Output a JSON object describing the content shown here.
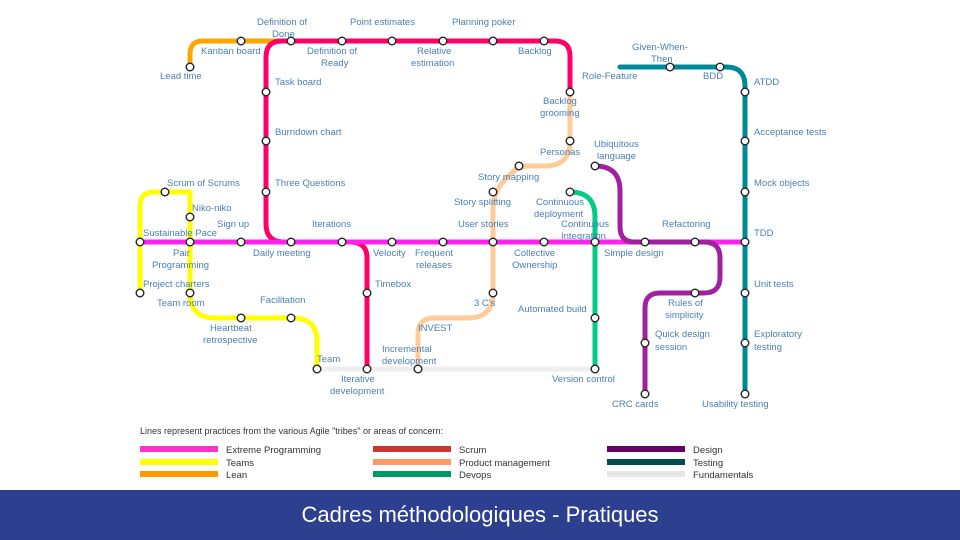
{
  "title": "Cadres méthodologiques - Pratiques",
  "legend": {
    "caption": "Lines represent practices from the various Agile \"tribes\" or areas of concern:",
    "items": [
      {
        "label": "Extreme Programming",
        "color": "#ff33cc"
      },
      {
        "label": "Teams",
        "color": "#ffff00"
      },
      {
        "label": "Lean",
        "color": "#ff9900"
      },
      {
        "label": "Scrum",
        "color": "#cc3333"
      },
      {
        "label": "Product management",
        "color": "#ff9966"
      },
      {
        "label": "Devops",
        "color": "#009966"
      },
      {
        "label": "Design",
        "color": "#660066"
      },
      {
        "label": "Testing",
        "color": "#004d4d"
      },
      {
        "label": "Fundamentals",
        "color": "#e6e6e6"
      }
    ]
  },
  "lines": {
    "xp": "#ff22ee",
    "teams": "#ffff00",
    "lean": "#ffa500",
    "scrum": "#ff0066",
    "product": "#ffcc99",
    "devops": "#00cc88",
    "design": "#a020a0",
    "testing": "#008899",
    "fundamentals": "#eeeeee"
  },
  "stations": {
    "lead_time": "Lead time",
    "kanban_board": "Kanban board",
    "definition_of_done_1": "Definition of",
    "definition_of_done_2": "Done",
    "point_estimates": "Point estimates",
    "planning_poker": "Planning poker",
    "definition_of_ready_1": "Definition of",
    "definition_of_ready_2": "Ready",
    "relative_estimation_1": "Relative",
    "relative_estimation_2": "estimation",
    "backlog": "Backlog",
    "task_board": "Task board",
    "burndown_chart": "Burndown chart",
    "three_questions": "Three Questions",
    "backlog_grooming_1": "Backlog",
    "backlog_grooming_2": "grooming",
    "personas": "Personas",
    "story_mapping": "Story mapping",
    "story_splitting": "Story splitting",
    "user_stories": "User stories",
    "continuous_deployment_1": "Continuous",
    "continuous_deployment_2": "deployment",
    "continuous_integration_1": "Continuous",
    "continuous_integration_2": "Integration",
    "given_when_then_1": "Given-When-",
    "given_when_then_2": "Then",
    "bdd": "BDD",
    "role_feature": "Role-Feature",
    "atdd": "ATDD",
    "acceptance_tests": "Acceptance tests",
    "mock_objects": "Mock objects",
    "ubiquitous_language_1": "Ubiquitous",
    "ubiquitous_language_2": "language",
    "refactoring": "Refactoring",
    "tdd": "TDD",
    "scrum_of_scrums": "Scrum of Scrums",
    "niko_niko": "Niko-niko",
    "sign_up": "Sign up",
    "iterations": "Iterations",
    "sustainable_pace": "Sustainable Pace",
    "pair_programming_1": "Pair",
    "pair_programming_2": "Programming",
    "daily_meeting": "Daily meeting",
    "velocity": "Velocity",
    "frequent_releases_1": "Frequent",
    "frequent_releases_2": "releases",
    "collective_ownership_1": "Collective",
    "collective_ownership_2": "Ownership",
    "simple_design": "Simple design",
    "project_charters": "Project charters",
    "team_room": "Team room",
    "timebox": "Timebox",
    "unit_tests": "Unit tests",
    "facilitation": "Facilitation",
    "three_cs": "3 C's",
    "automated_build": "Automated build",
    "rules_of_simplicity_1": "Rules of",
    "rules_of_simplicity_2": "simplicity",
    "heartbeat_retrospective_1": "Heartbeat",
    "heartbeat_retrospective_2": "retrospective",
    "invest": "INVEST",
    "quick_design_session_1": "Quick design",
    "quick_design_session_2": "session",
    "exploratory_testing_1": "Exploratory",
    "exploratory_testing_2": "testing",
    "incremental_development_1": "Incremental",
    "incremental_development_2": "development",
    "team": "Team",
    "iterative_development_1": "Iterative",
    "iterative_development_2": "development",
    "version_control": "Version control",
    "crc_cards": "CRC cards",
    "usability_testing": "Usability testing"
  }
}
